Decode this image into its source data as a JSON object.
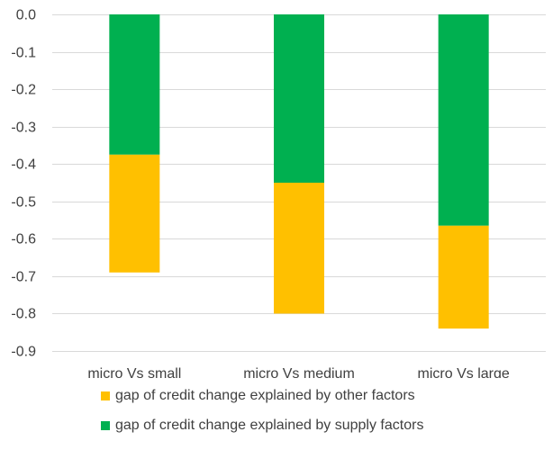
{
  "chart_data": {
    "type": "bar",
    "stacked": true,
    "categories": [
      "micro Vs small",
      "micro Vs medium",
      "micro Vs large"
    ],
    "series": [
      {
        "name": "gap of credit change explained by supply factors",
        "color": "#00b050",
        "values": [
          -0.375,
          -0.45,
          -0.565
        ]
      },
      {
        "name": "gap of credit change explained by other factors",
        "color": "#ffc000",
        "values": [
          -0.315,
          -0.35,
          -0.275
        ]
      }
    ],
    "totals": [
      -0.69,
      -0.8,
      -0.84
    ],
    "ylim": [
      -0.9,
      0.0
    ],
    "yticks": [
      "0.0",
      "-0.1",
      "-0.2",
      "-0.3",
      "-0.4",
      "-0.5",
      "-0.6",
      "-0.7",
      "-0.8",
      "-0.9"
    ],
    "ytick_values": [
      0.0,
      -0.1,
      -0.2,
      -0.3,
      -0.4,
      -0.5,
      -0.6,
      -0.7,
      -0.8,
      -0.9
    ],
    "grid": true,
    "legend_position": "bottom",
    "legend_order": [
      "gap of credit change explained by other factors",
      "gap of credit change explained by supply factors"
    ],
    "gridline_color": "#d9d9d9"
  }
}
